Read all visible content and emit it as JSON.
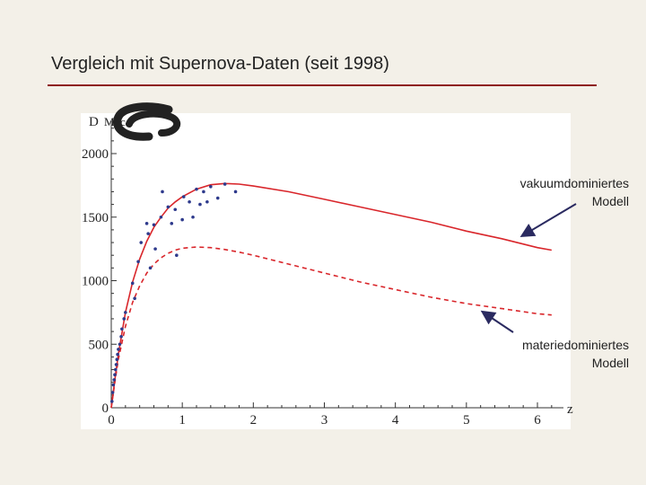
{
  "title": "Vergleich mit Supernova-Daten (seit 1998)",
  "annotations": [
    {
      "id": "vac",
      "line1": "vakuumdominiertes",
      "line2": "Modell"
    },
    {
      "id": "mat",
      "line1": "materiedominiertes",
      "line2": "Modell"
    }
  ],
  "colors": {
    "accent_rule": "#8e1b1b",
    "model_lines": "#d9262b",
    "data_points": "#2e3a8c",
    "background": "#f3f0e8"
  },
  "chart_data": {
    "type": "scatter",
    "title": "",
    "xlabel": "z",
    "ylabel": "D",
    "ylabel_unit_partial": "Mpc",
    "xlim": [
      0,
      6.5
    ],
    "ylim": [
      0,
      2200
    ],
    "x_ticks": [
      "0",
      "1",
      "2",
      "3",
      "4",
      "5",
      "6"
    ],
    "y_ticks": [
      "0",
      "500",
      "1000",
      "1500",
      "2000"
    ],
    "grid": false,
    "series": [
      {
        "style": "solid",
        "x": [
          0,
          0.05,
          0.1,
          0.2,
          0.3,
          0.4,
          0.5,
          0.6,
          0.7,
          0.8,
          0.9,
          1.0,
          1.2,
          1.4,
          1.6,
          1.8,
          2.0,
          2.5,
          3.0,
          3.5,
          4.0,
          4.5,
          5.0,
          5.5,
          6.0,
          6.2
        ],
        "y": [
          0,
          220,
          420,
          750,
          990,
          1170,
          1310,
          1420,
          1500,
          1570,
          1620,
          1660,
          1720,
          1755,
          1765,
          1760,
          1745,
          1700,
          1640,
          1580,
          1520,
          1460,
          1390,
          1330,
          1260,
          1240
        ]
      },
      {
        "style": "dashed",
        "x": [
          0,
          0.05,
          0.1,
          0.2,
          0.3,
          0.4,
          0.5,
          0.6,
          0.7,
          0.8,
          0.9,
          1.0,
          1.2,
          1.4,
          1.6,
          1.8,
          2.0,
          2.5,
          3.0,
          3.5,
          4.0,
          4.5,
          5.0,
          5.5,
          6.0,
          6.2
        ],
        "y": [
          0,
          200,
          380,
          640,
          830,
          960,
          1060,
          1130,
          1180,
          1215,
          1240,
          1255,
          1265,
          1260,
          1245,
          1225,
          1200,
          1130,
          1060,
          990,
          930,
          870,
          820,
          780,
          740,
          730
        ]
      },
      {
        "style": "points",
        "x": [
          0.01,
          0.02,
          0.03,
          0.04,
          0.05,
          0.06,
          0.07,
          0.08,
          0.09,
          0.1,
          0.12,
          0.14,
          0.15,
          0.18,
          0.2,
          0.3,
          0.33,
          0.38,
          0.42,
          0.5,
          0.52,
          0.55,
          0.6,
          0.62,
          0.7,
          0.72,
          0.8,
          0.85,
          0.9,
          0.92,
          1.0,
          1.02,
          1.1,
          1.15,
          1.2,
          1.25,
          1.3,
          1.35,
          1.4,
          1.5,
          1.6,
          1.75
        ],
        "y": [
          50,
          120,
          180,
          220,
          260,
          300,
          340,
          380,
          420,
          460,
          500,
          560,
          620,
          700,
          750,
          980,
          860,
          1150,
          1300,
          1450,
          1370,
          1100,
          1440,
          1250,
          1500,
          1700,
          1580,
          1450,
          1560,
          1200,
          1480,
          1660,
          1620,
          1500,
          1720,
          1600,
          1700,
          1620,
          1740,
          1650,
          1760,
          1700
        ]
      }
    ]
  }
}
